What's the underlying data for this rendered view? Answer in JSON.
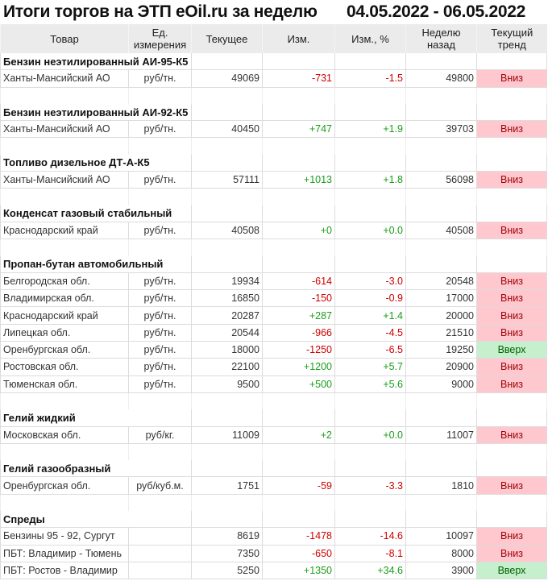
{
  "title": "Итоги торгов на ЭТП eOil.ru за неделю",
  "period": "04.05.2022 - 06.05.2022",
  "columns": [
    "Товар",
    "Ед.\nизмерения",
    "Текущее",
    "Изм.",
    "Изм., %",
    "Неделю\nназад",
    "Текущий\nтренд"
  ],
  "colors": {
    "negative": "#d00000",
    "positive": "#1a9e1a",
    "down_bg": "#ffc7ce",
    "up_bg": "#c6efce"
  },
  "sections": [
    {
      "name": "Бензин неэтилированный АИ-95-К5",
      "rows": [
        [
          "Ханты-Мансийский АО",
          "руб/тн.",
          "49069",
          "-731",
          "-1.5",
          "49800",
          "Вниз"
        ]
      ]
    },
    {
      "name": "Бензин неэтилированный АИ-92-К5",
      "rows": [
        [
          "Ханты-Мансийский АО",
          "руб/тн.",
          "40450",
          "+747",
          "+1.9",
          "39703",
          "Вниз"
        ]
      ]
    },
    {
      "name": "Топливо дизельное ДТ-А-К5",
      "rows": [
        [
          "Ханты-Мансийский АО",
          "руб/тн.",
          "57111",
          "+1013",
          "+1.8",
          "56098",
          "Вниз"
        ]
      ]
    },
    {
      "name": "Конденсат газовый стабильный",
      "rows": [
        [
          "Краснодарский край",
          "руб/тн.",
          "40508",
          "+0",
          "+0.0",
          "40508",
          "Вниз"
        ]
      ]
    },
    {
      "name": "Пропан-бутан автомобильный",
      "rows": [
        [
          "Белгородская обл.",
          "руб/тн.",
          "19934",
          "-614",
          "-3.0",
          "20548",
          "Вниз"
        ],
        [
          "Владимирская обл.",
          "руб/тн.",
          "16850",
          "-150",
          "-0.9",
          "17000",
          "Вниз"
        ],
        [
          "Краснодарский край",
          "руб/тн.",
          "20287",
          "+287",
          "+1.4",
          "20000",
          "Вниз"
        ],
        [
          "Липецкая обл.",
          "руб/тн.",
          "20544",
          "-966",
          "-4.5",
          "21510",
          "Вниз"
        ],
        [
          "Оренбургская обл.",
          "руб/тн.",
          "18000",
          "-1250",
          "-6.5",
          "19250",
          "Вверх"
        ],
        [
          "Ростовская обл.",
          "руб/тн.",
          "22100",
          "+1200",
          "+5.7",
          "20900",
          "Вниз"
        ],
        [
          "Тюменская обл.",
          "руб/тн.",
          "9500",
          "+500",
          "+5.6",
          "9000",
          "Вниз"
        ]
      ]
    },
    {
      "name": "Гелий жидкий",
      "rows": [
        [
          "Московская обл.",
          "руб/кг.",
          "11009",
          "+2",
          "+0.0",
          "11007",
          "Вниз"
        ]
      ]
    },
    {
      "name": "Гелий газообразный",
      "rows": [
        [
          "Оренбургская обл.",
          "руб/куб.м.",
          "1751",
          "-59",
          "-3.3",
          "1810",
          "Вниз"
        ]
      ]
    },
    {
      "name": "Спреды",
      "rows": [
        [
          "Бензины 95 - 92, Сургут",
          "",
          "8619",
          "-1478",
          "-14.6",
          "10097",
          "Вниз"
        ],
        [
          "ПБТ: Владимир - Тюмень",
          "",
          "7350",
          "-650",
          "-8.1",
          "8000",
          "Вниз"
        ],
        [
          "ПБТ: Ростов - Владимир",
          "",
          "5250",
          "+1350",
          "+34.6",
          "3900",
          "Вверх"
        ]
      ]
    }
  ]
}
